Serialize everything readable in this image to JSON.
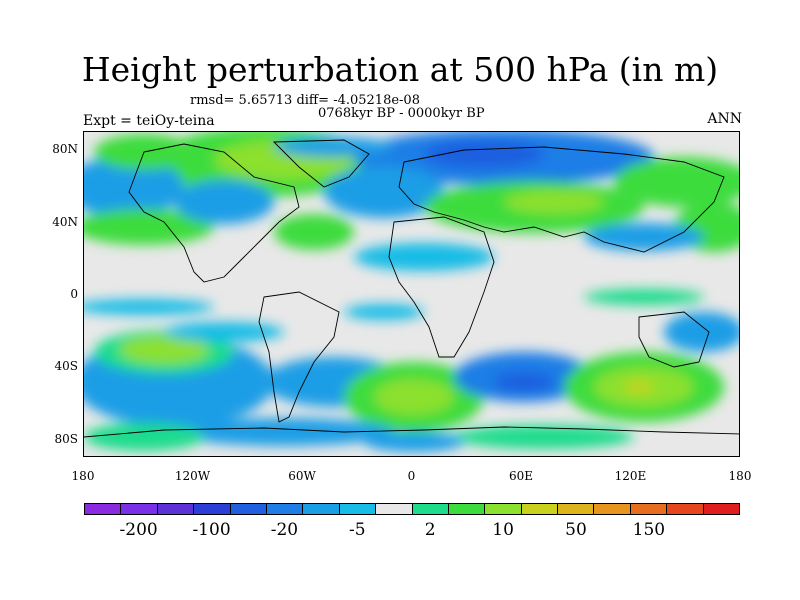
{
  "title": "Height perturbation at 500 hPa (in m)",
  "stats_line": "rmsd= 5.65713 diff= -4.05218e-08",
  "period_line": "0768kyr BP - 0000kyr BP",
  "experiment_label": "Expt = teiOy-teina",
  "season_label": "ANN",
  "map": {
    "projection": "cylindrical equidistant",
    "lon_range": [
      -180,
      180
    ],
    "lat_range": [
      -90,
      90
    ],
    "coastlines": true,
    "lat_ticks": [
      {
        "value": 80,
        "label": "80N"
      },
      {
        "value": 40,
        "label": "40N"
      },
      {
        "value": 0,
        "label": "0"
      },
      {
        "value": -40,
        "label": "40S"
      },
      {
        "value": -80,
        "label": "80S"
      }
    ],
    "lon_ticks": [
      {
        "value": -180,
        "label": "180"
      },
      {
        "value": -120,
        "label": "120W"
      },
      {
        "value": -60,
        "label": "60W"
      },
      {
        "value": 0,
        "label": "0"
      },
      {
        "value": 60,
        "label": "60E"
      },
      {
        "value": 120,
        "label": "120E"
      },
      {
        "value": 180,
        "label": "180"
      }
    ]
  },
  "colorbar": {
    "colors": [
      "#8a2be2",
      "#7a30e6",
      "#5c32d6",
      "#2b3ed6",
      "#1f5fe0",
      "#1e7ee6",
      "#1a9ee6",
      "#18bce6",
      "#e8e8e8",
      "#1edc8c",
      "#3cdc3c",
      "#8ce02e",
      "#c8d21e",
      "#dcb41e",
      "#e6961e",
      "#e66e1e",
      "#e6461e",
      "#e01e1e"
    ],
    "labels": [
      "-200",
      "-100",
      "-20",
      "-5",
      "2",
      "10",
      "50",
      "150"
    ]
  }
}
